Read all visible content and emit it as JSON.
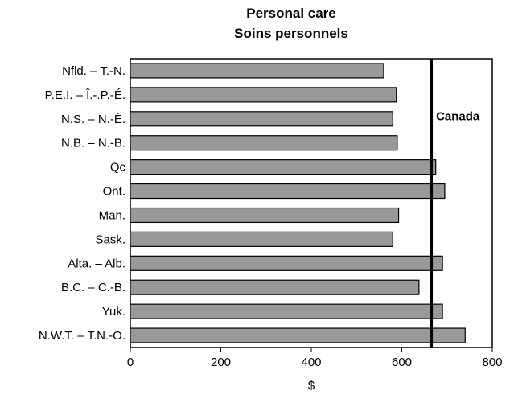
{
  "chart_data": {
    "type": "bar",
    "orientation": "horizontal",
    "title": "Personal care",
    "subtitle": "Soins personnels",
    "xlabel": "$",
    "ylabel": "",
    "xlim": [
      0,
      800
    ],
    "xticks": [
      "0",
      "200",
      "400",
      "600",
      "800"
    ],
    "xtick_values": [
      0,
      200,
      400,
      600,
      800
    ],
    "grid": false,
    "categories": [
      "Nfld. – T.-N.",
      "P.E.I. – Î.-.P.-É.",
      "N.S. – N.-É.",
      "N.B. – N.-B.",
      "Qc",
      "Ont.",
      "Man.",
      "Sask.",
      "Alta. – Alb.",
      "B.C. – C.-B.",
      "Yuk.",
      "N.W.T. – T.N.-O."
    ],
    "values": [
      560,
      588,
      580,
      590,
      675,
      695,
      593,
      580,
      690,
      638,
      690,
      740
    ],
    "bar_color": "#999999",
    "reference_line": {
      "label": "Canada",
      "value": 665
    }
  }
}
